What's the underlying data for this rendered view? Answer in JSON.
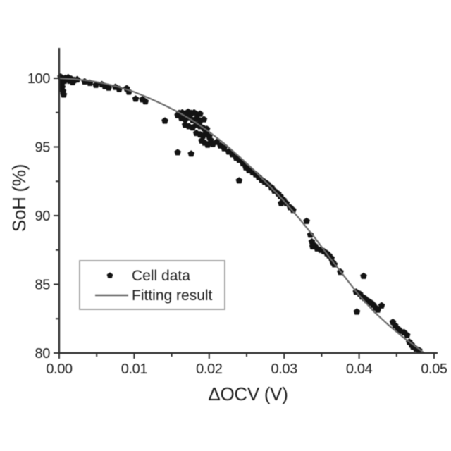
{
  "page": {
    "background": "#ffffff"
  },
  "chart_data": {
    "type": "scatter",
    "title": "",
    "xlabel": "ΔOCV (V)",
    "ylabel": "SoH (%)",
    "xlim": [
      0,
      0.05
    ],
    "ylim": [
      80,
      102.2
    ],
    "grid": false,
    "tick_direction": "out",
    "x_major_ticks": [
      0,
      0.01,
      0.02,
      0.03,
      0.04,
      0.05
    ],
    "x_tick_labels": [
      "0.00",
      "0.01",
      "0.02",
      "0.03",
      "0.04",
      "0.05"
    ],
    "x_minor_ticks": [
      0.005,
      0.015,
      0.025,
      0.035,
      0.045
    ],
    "y_major_ticks": [
      80,
      85,
      90,
      95,
      100
    ],
    "y_tick_labels": [
      "80",
      "85",
      "90",
      "95",
      "100"
    ],
    "y_minor_ticks": [
      82.5,
      87.5,
      92.5,
      97.5
    ],
    "colors": {
      "background": "#ffffff",
      "axis": "#2e2e2e",
      "text": "#1c1c1c",
      "marker": "#131313",
      "fit_line": "#6a6a6a",
      "legend_border": "#9e9e9e"
    },
    "legend": {
      "position": "inside-lower-left",
      "entries": [
        {
          "label": "Cell data",
          "type": "marker",
          "marker": "pentagon",
          "color": "#131313"
        },
        {
          "label": "Fitting result",
          "type": "line",
          "color": "#6a6a6a"
        }
      ]
    },
    "series": [
      {
        "name": "Cell data",
        "type": "scatter",
        "marker": "pentagon",
        "color": "#131313",
        "points": [
          [
            0.0002,
            100.1
          ],
          [
            0.0003,
            99.9
          ],
          [
            0.0004,
            99.65
          ],
          [
            0.0004,
            99.35
          ],
          [
            0.0005,
            99.05
          ],
          [
            0.0006,
            98.8
          ],
          [
            0.0007,
            99.8
          ],
          [
            0.0008,
            100.0
          ],
          [
            0.001,
            99.9
          ],
          [
            0.0012,
            100.05
          ],
          [
            0.0014,
            99.8
          ],
          [
            0.0016,
            99.95
          ],
          [
            0.0018,
            99.7
          ],
          [
            0.002,
            99.85
          ],
          [
            0.0024,
            99.9
          ],
          [
            0.0034,
            99.75
          ],
          [
            0.0041,
            99.65
          ],
          [
            0.0049,
            99.5
          ],
          [
            0.0057,
            99.55
          ],
          [
            0.0061,
            99.4
          ],
          [
            0.0066,
            99.3
          ],
          [
            0.0075,
            99.35
          ],
          [
            0.008,
            99.2
          ],
          [
            0.009,
            99.25
          ],
          [
            0.0093,
            99.0
          ],
          [
            0.0102,
            98.5
          ],
          [
            0.0111,
            98.45
          ],
          [
            0.0115,
            98.3
          ],
          [
            0.0141,
            96.9
          ],
          [
            0.016,
            97.45
          ],
          [
            0.0164,
            97.5
          ],
          [
            0.0168,
            97.4
          ],
          [
            0.0172,
            97.55
          ],
          [
            0.0176,
            97.45
          ],
          [
            0.018,
            97.5
          ],
          [
            0.0184,
            97.35
          ],
          [
            0.0188,
            97.4
          ],
          [
            0.0158,
            97.3
          ],
          [
            0.0163,
            97.1
          ],
          [
            0.0168,
            97.0
          ],
          [
            0.0173,
            97.15
          ],
          [
            0.0178,
            96.95
          ],
          [
            0.0183,
            97.05
          ],
          [
            0.0188,
            96.9
          ],
          [
            0.0193,
            97.0
          ],
          [
            0.0168,
            96.6
          ],
          [
            0.0173,
            96.5
          ],
          [
            0.0178,
            96.4
          ],
          [
            0.0183,
            96.6
          ],
          [
            0.0188,
            96.5
          ],
          [
            0.0193,
            96.35
          ],
          [
            0.0197,
            96.3
          ],
          [
            0.0183,
            96.0
          ],
          [
            0.0188,
            95.9
          ],
          [
            0.0192,
            95.8
          ],
          [
            0.0196,
            96.05
          ],
          [
            0.02,
            95.75
          ],
          [
            0.019,
            95.45
          ],
          [
            0.0194,
            95.3
          ],
          [
            0.0198,
            95.15
          ],
          [
            0.0202,
            95.5
          ],
          [
            0.0205,
            95.2
          ],
          [
            0.0158,
            94.6
          ],
          [
            0.0176,
            94.5
          ],
          [
            0.021,
            95.35
          ],
          [
            0.0215,
            95.1
          ],
          [
            0.022,
            94.9
          ],
          [
            0.0226,
            94.65
          ],
          [
            0.0231,
            94.45
          ],
          [
            0.0236,
            94.2
          ],
          [
            0.024,
            94.05
          ],
          [
            0.0245,
            93.8
          ],
          [
            0.024,
            92.55
          ],
          [
            0.0249,
            93.5
          ],
          [
            0.0253,
            93.3
          ],
          [
            0.0258,
            93.15
          ],
          [
            0.0262,
            93.0
          ],
          [
            0.0266,
            92.8
          ],
          [
            0.027,
            92.6
          ],
          [
            0.0274,
            92.45
          ],
          [
            0.0278,
            92.3
          ],
          [
            0.0283,
            92.05
          ],
          [
            0.0287,
            91.8
          ],
          [
            0.0292,
            91.6
          ],
          [
            0.0295,
            91.4
          ],
          [
            0.0296,
            90.9
          ],
          [
            0.0299,
            91.15
          ],
          [
            0.0303,
            90.9
          ],
          [
            0.0308,
            90.6
          ],
          [
            0.0312,
            90.4
          ],
          [
            0.033,
            89.6
          ],
          [
            0.0335,
            88.6
          ],
          [
            0.0337,
            88.1
          ],
          [
            0.0338,
            87.75
          ],
          [
            0.0341,
            87.8
          ],
          [
            0.0344,
            87.6
          ],
          [
            0.0349,
            87.5
          ],
          [
            0.0353,
            87.4
          ],
          [
            0.0357,
            87.25
          ],
          [
            0.036,
            87.1
          ],
          [
            0.0363,
            86.9
          ],
          [
            0.0365,
            86.6
          ],
          [
            0.0367,
            86.45
          ],
          [
            0.0375,
            85.9
          ],
          [
            0.0406,
            85.6
          ],
          [
            0.0396,
            84.45
          ],
          [
            0.0401,
            84.3
          ],
          [
            0.0404,
            84.1
          ],
          [
            0.0407,
            84.0
          ],
          [
            0.041,
            83.85
          ],
          [
            0.0413,
            83.75
          ],
          [
            0.0416,
            83.65
          ],
          [
            0.0419,
            83.5
          ],
          [
            0.0422,
            83.3
          ],
          [
            0.0425,
            83.15
          ],
          [
            0.043,
            83.45
          ],
          [
            0.0397,
            83.0
          ],
          [
            0.0445,
            82.25
          ],
          [
            0.0448,
            82.0
          ],
          [
            0.0452,
            81.75
          ],
          [
            0.0455,
            81.6
          ],
          [
            0.046,
            81.5
          ],
          [
            0.0464,
            81.3
          ],
          [
            0.0467,
            80.8
          ],
          [
            0.047,
            80.6
          ],
          [
            0.0472,
            80.45
          ],
          [
            0.0476,
            80.3
          ],
          [
            0.048,
            80.2
          ]
        ]
      },
      {
        "name": "Fitting result",
        "type": "line",
        "color": "#6a6a6a",
        "points": [
          [
            0.0,
            100.0
          ],
          [
            0.002,
            99.93
          ],
          [
            0.004,
            99.82
          ],
          [
            0.006,
            99.62
          ],
          [
            0.008,
            99.35
          ],
          [
            0.01,
            99.0
          ],
          [
            0.012,
            98.55
          ],
          [
            0.014,
            98.05
          ],
          [
            0.016,
            97.5
          ],
          [
            0.018,
            96.85
          ],
          [
            0.02,
            96.1
          ],
          [
            0.022,
            95.25
          ],
          [
            0.024,
            94.3
          ],
          [
            0.026,
            93.3
          ],
          [
            0.028,
            92.2
          ],
          [
            0.03,
            91.05
          ],
          [
            0.032,
            89.8
          ],
          [
            0.034,
            88.45
          ],
          [
            0.036,
            87.0
          ],
          [
            0.038,
            85.6
          ],
          [
            0.04,
            84.2
          ],
          [
            0.042,
            83.0
          ],
          [
            0.044,
            82.0
          ],
          [
            0.046,
            81.1
          ],
          [
            0.048,
            80.3
          ],
          [
            0.0487,
            80.0
          ]
        ]
      }
    ]
  }
}
